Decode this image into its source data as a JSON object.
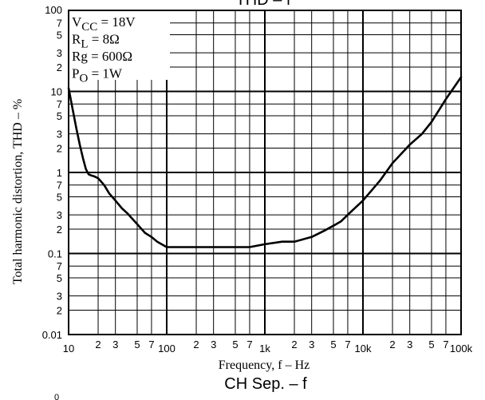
{
  "top_title": "THD – f",
  "bottom_title": "CH Sep. – f",
  "chart_data": {
    "type": "line",
    "title": "THD – f",
    "xlabel": "Frequency, f – Hz",
    "ylabel": "Total harmonic distortion, THD – %",
    "x_scale": "log",
    "y_scale": "log",
    "xlim": [
      10,
      100000
    ],
    "ylim": [
      0.01,
      100
    ],
    "grid": true,
    "conditions": [
      {
        "name": "V",
        "sub": "CC",
        "value": " = 18V"
      },
      {
        "name": "R",
        "sub": "L",
        "value": " = 8Ω"
      },
      {
        "name": "Rg",
        "sub": "",
        "value": " = 600Ω"
      },
      {
        "name": "P",
        "sub": "O",
        "value": " = 1W"
      }
    ],
    "x_major_ticks": [
      {
        "value": 10,
        "label": "10"
      },
      {
        "value": 100,
        "label": "100"
      },
      {
        "value": 1000,
        "label": "1k"
      },
      {
        "value": 10000,
        "label": "10k"
      },
      {
        "value": 100000,
        "label": "100k"
      }
    ],
    "x_minor_ticks": [
      {
        "value": 20,
        "label": "2"
      },
      {
        "value": 30,
        "label": "3"
      },
      {
        "value": 50,
        "label": "5"
      },
      {
        "value": 70,
        "label": "7"
      },
      {
        "value": 200,
        "label": "2"
      },
      {
        "value": 300,
        "label": "3"
      },
      {
        "value": 500,
        "label": "5"
      },
      {
        "value": 700,
        "label": "7"
      },
      {
        "value": 2000,
        "label": "2"
      },
      {
        "value": 3000,
        "label": "3"
      },
      {
        "value": 5000,
        "label": "5"
      },
      {
        "value": 7000,
        "label": "7"
      },
      {
        "value": 20000,
        "label": "2"
      },
      {
        "value": 30000,
        "label": "3"
      },
      {
        "value": 50000,
        "label": "5"
      },
      {
        "value": 70000,
        "label": "7"
      }
    ],
    "y_major_ticks": [
      {
        "value": 100,
        "label": "100"
      },
      {
        "value": 10,
        "label": "10"
      },
      {
        "value": 1,
        "label": "1"
      },
      {
        "value": 0.1,
        "label": "0.1"
      },
      {
        "value": 0.01,
        "label": "0.01"
      }
    ],
    "y_minor_ticks": [
      {
        "value": 70,
        "label": "7"
      },
      {
        "value": 50,
        "label": "5"
      },
      {
        "value": 30,
        "label": "3"
      },
      {
        "value": 20,
        "label": "2"
      },
      {
        "value": 7,
        "label": "7"
      },
      {
        "value": 5,
        "label": "5"
      },
      {
        "value": 3,
        "label": "3"
      },
      {
        "value": 2,
        "label": "2"
      },
      {
        "value": 0.7,
        "label": "7"
      },
      {
        "value": 0.5,
        "label": "5"
      },
      {
        "value": 0.3,
        "label": "3"
      },
      {
        "value": 0.2,
        "label": "2"
      },
      {
        "value": 0.07,
        "label": "7"
      },
      {
        "value": 0.05,
        "label": "5"
      },
      {
        "value": 0.03,
        "label": "3"
      },
      {
        "value": 0.02,
        "label": "2"
      }
    ],
    "series": [
      {
        "x": [
          10,
          11,
          12,
          13,
          14,
          15,
          16,
          17,
          18,
          20,
          23,
          26,
          30,
          35,
          40,
          50,
          60,
          70,
          80,
          100,
          150,
          200,
          300,
          500,
          700,
          1000,
          1500,
          2000,
          3000,
          4000,
          5000,
          6000,
          7000,
          8000,
          10000,
          15000,
          20000,
          30000,
          40000,
          50000,
          70000,
          100000
        ],
        "y": [
          11,
          6,
          3.5,
          2.2,
          1.5,
          1.1,
          0.95,
          0.92,
          0.9,
          0.85,
          0.7,
          0.55,
          0.45,
          0.36,
          0.31,
          0.23,
          0.18,
          0.16,
          0.14,
          0.12,
          0.12,
          0.12,
          0.12,
          0.12,
          0.12,
          0.13,
          0.14,
          0.14,
          0.16,
          0.19,
          0.22,
          0.25,
          0.3,
          0.35,
          0.45,
          0.8,
          1.3,
          2.2,
          3,
          4.2,
          8,
          15
        ]
      }
    ]
  }
}
